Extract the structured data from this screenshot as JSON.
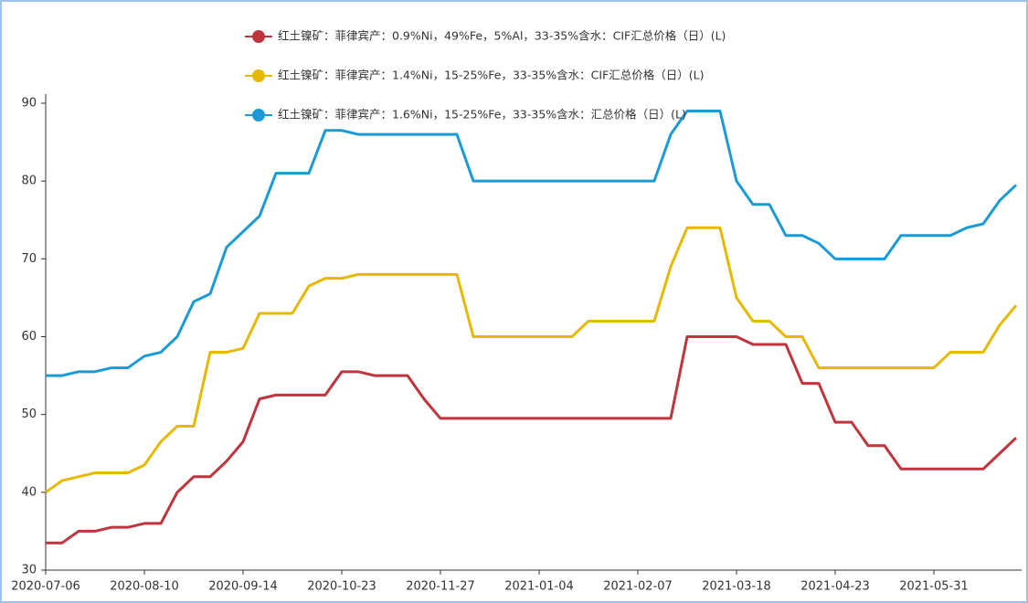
{
  "chart_data": {
    "type": "line",
    "categories": [
      "2020-07-06",
      null,
      null,
      null,
      null,
      null,
      "2020-08-10",
      null,
      null,
      null,
      null,
      null,
      "2020-09-14",
      null,
      null,
      null,
      null,
      null,
      "2020-10-23",
      null,
      null,
      null,
      null,
      null,
      "2020-11-27",
      null,
      null,
      null,
      null,
      null,
      "2021-01-04",
      null,
      null,
      null,
      null,
      null,
      "2021-02-07",
      null,
      null,
      null,
      null,
      null,
      "2021-03-18",
      null,
      null,
      null,
      null,
      null,
      "2021-04-23",
      null,
      null,
      null,
      null,
      null,
      "2021-05-31",
      null,
      null,
      null,
      null,
      null
    ],
    "series": [
      {
        "name": "红土镍矿：菲律宾产：0.9%Ni，49%Fe，5%Al，33-35%含水：CIF汇总价格（日）(L)",
        "color": "#c0343d",
        "values": [
          33.5,
          33.5,
          35,
          35,
          35.5,
          35.5,
          36,
          36,
          40,
          42,
          42,
          44,
          46.5,
          52,
          52.5,
          52.5,
          52.5,
          52.5,
          55.5,
          55.5,
          55,
          55,
          55,
          52,
          49.5,
          49.5,
          49.5,
          49.5,
          49.5,
          49.5,
          49.5,
          49.5,
          49.5,
          49.5,
          49.5,
          49.5,
          49.5,
          49.5,
          49.5,
          60,
          60,
          60,
          60,
          59,
          59,
          59,
          54,
          54,
          49,
          49,
          46,
          46,
          43,
          43,
          43,
          43,
          43,
          43,
          45,
          47
        ]
      },
      {
        "name": "红土镍矿：菲律宾产：1.4%Ni，15-25%Fe，33-35%含水：CIF汇总价格（日）(L)",
        "color": "#e6b800",
        "values": [
          40,
          41.5,
          42,
          42.5,
          42.5,
          42.5,
          43.5,
          46.5,
          48.5,
          48.5,
          58,
          58,
          58.5,
          63,
          63,
          63,
          66.5,
          67.5,
          67.5,
          68,
          68,
          68,
          68,
          68,
          68,
          68,
          60,
          60,
          60,
          60,
          60,
          60,
          60,
          62,
          62,
          62,
          62,
          62,
          69,
          74,
          74,
          74,
          65,
          62,
          62,
          60,
          60,
          56,
          56,
          56,
          56,
          56,
          56,
          56,
          56,
          58,
          58,
          58,
          61.5,
          64
        ]
      },
      {
        "name": "红土镍矿：菲律宾产：1.6%Ni，15-25%Fe，33-35%含水：汇总价格（日）(L)",
        "color": "#1a9ad6",
        "values": [
          55,
          55,
          55.5,
          55.5,
          56,
          56,
          57.5,
          58,
          60,
          64.5,
          65.5,
          71.5,
          73.5,
          75.5,
          81,
          81,
          81,
          86.5,
          86.5,
          86,
          86,
          86,
          86,
          86,
          86,
          86,
          80,
          80,
          80,
          80,
          80,
          80,
          80,
          80,
          80,
          80,
          80,
          80,
          86,
          89,
          89,
          89,
          80,
          77,
          77,
          73,
          73,
          72,
          70,
          70,
          70,
          70,
          73,
          73,
          73,
          73,
          74,
          74.5,
          77.5,
          79.5
        ]
      }
    ],
    "ylim": [
      30,
      90
    ],
    "yticks": [
      30,
      40,
      50,
      60,
      70,
      80,
      90
    ]
  }
}
